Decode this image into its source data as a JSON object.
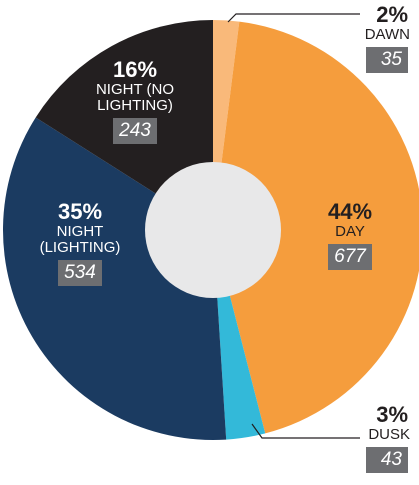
{
  "chart_data": {
    "type": "pie",
    "categories": [
      "DAWN",
      "DAY",
      "DUSK",
      "NIGHT (LIGHTING)",
      "NIGHT (NO LIGHTING)"
    ],
    "values": [
      2,
      44,
      3,
      35,
      16
    ],
    "value_labels": [
      "2%",
      "44%",
      "3%",
      "35%",
      "16%"
    ],
    "counts": [
      35,
      677,
      43,
      534,
      243
    ],
    "colors": [
      "#f9b97a",
      "#f59d3d",
      "#33b9d9",
      "#1b3b61",
      "#231f20"
    ],
    "donut": true
  }
}
